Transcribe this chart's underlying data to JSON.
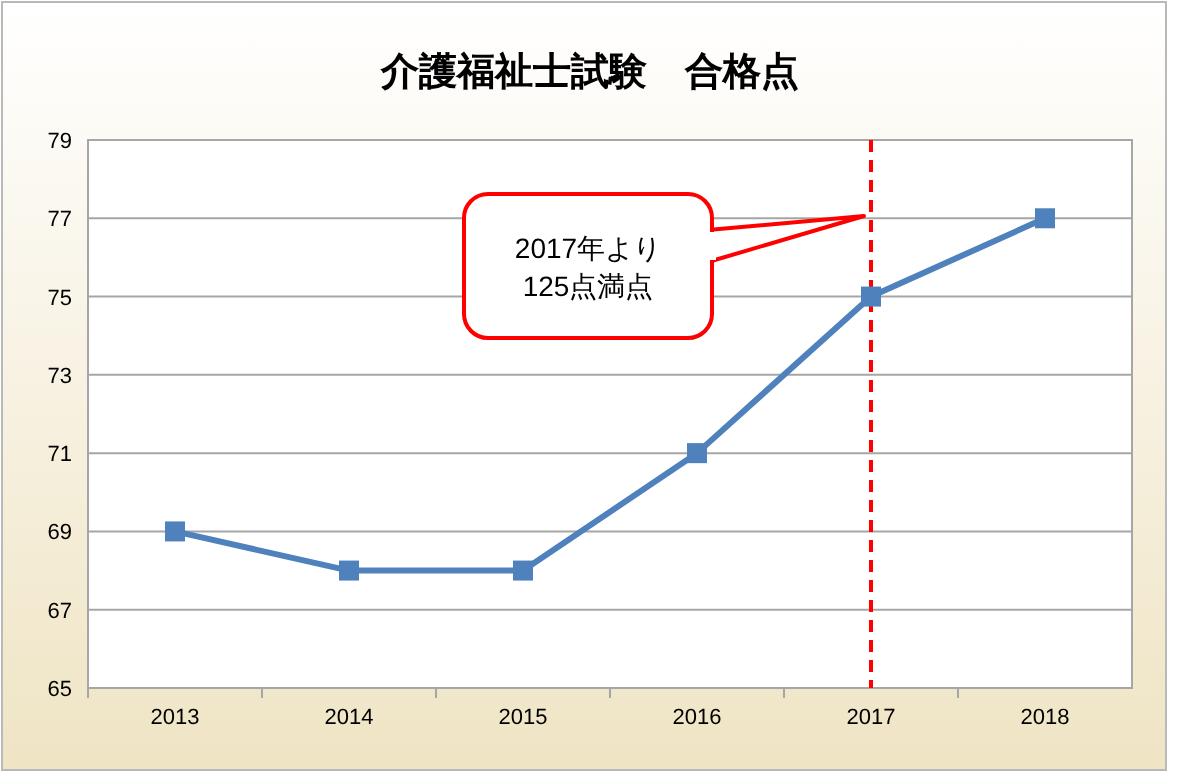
{
  "chart_data": {
    "type": "line",
    "title": "介護福祉士試験　合格点",
    "categories": [
      "2013",
      "2014",
      "2015",
      "2016",
      "2017",
      "2018"
    ],
    "series": [
      {
        "color": "#4f81bd",
        "values": [
          69,
          68,
          68,
          71,
          75,
          77
        ]
      }
    ],
    "ylim": [
      65,
      79
    ],
    "yticks": [
      65,
      67,
      69,
      71,
      73,
      75,
      77,
      79
    ],
    "grid": "y",
    "marker": "square",
    "line_style": "solid",
    "ref_lines": [
      {
        "axis": "x",
        "value": "2017",
        "color": "#ff0000",
        "line_style": "dashed"
      }
    ],
    "annotations": [
      "2017年より\n125点満点"
    ]
  }
}
